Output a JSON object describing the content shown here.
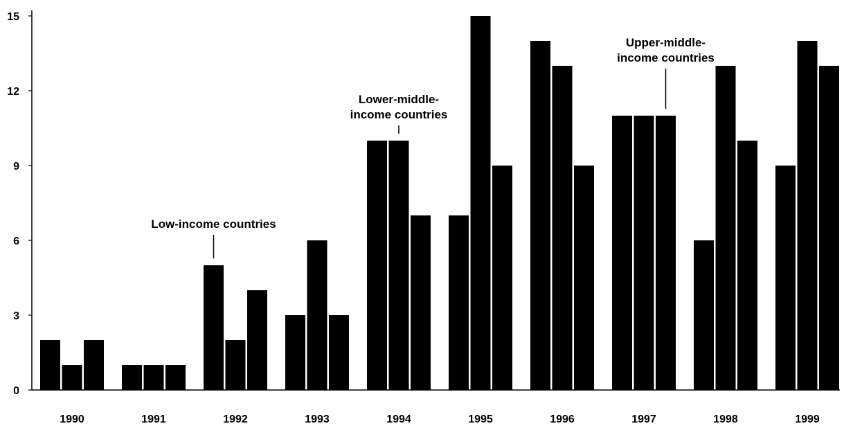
{
  "chart_data": {
    "type": "bar",
    "categories": [
      "1990",
      "1991",
      "1992",
      "1993",
      "1994",
      "1995",
      "1996",
      "1997",
      "1998",
      "1999"
    ],
    "series": [
      {
        "name": "Low-income countries",
        "values": [
          2,
          1,
          5,
          3,
          10,
          7,
          14,
          11,
          6,
          9
        ]
      },
      {
        "name": "Lower-middle-income countries",
        "values": [
          1,
          1,
          2,
          6,
          10,
          15,
          13,
          11,
          13,
          14
        ]
      },
      {
        "name": "Upper-middle-income countries",
        "values": [
          2,
          1,
          4,
          3,
          7,
          9,
          9,
          11,
          10,
          13
        ]
      }
    ],
    "yticks": [
      "0",
      "3",
      "6",
      "9",
      "12",
      "15"
    ],
    "ylim": [
      0,
      15
    ],
    "title": "",
    "xlabel": "",
    "ylabel": "",
    "grid": false,
    "bar_color": "#000000",
    "annotations": [
      {
        "lines": [
          "Low-income countries"
        ],
        "year": "1992",
        "series": 0
      },
      {
        "lines": [
          "Lower-middle-",
          "income countries"
        ],
        "year": "1994",
        "series": 1
      },
      {
        "lines": [
          "Upper-middle-",
          "income countries"
        ],
        "year": "1997",
        "series": 2
      }
    ]
  }
}
